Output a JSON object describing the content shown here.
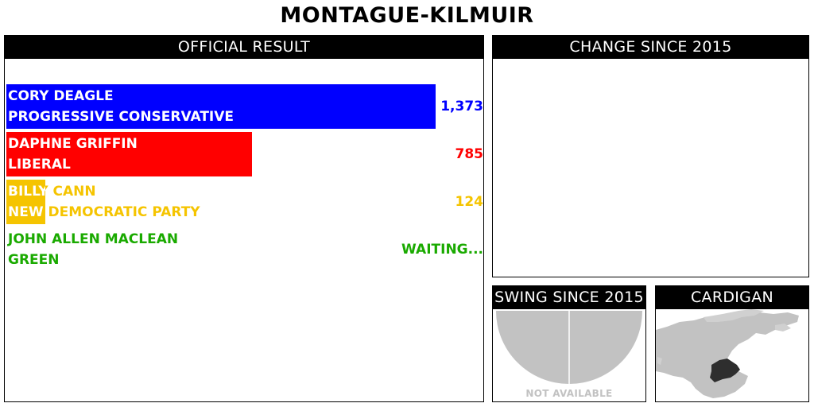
{
  "title": "MONTAGUE-KILMUIR",
  "official": {
    "header": "OFFICIAL RESULT",
    "candidates": [
      {
        "name": "CORY DEAGLE",
        "party": "PROGRESSIVE CONSERVATIVE",
        "votes": "1,373",
        "vote_count": 1373,
        "color": "#0000ff",
        "text_color": "#ffffff"
      },
      {
        "name": "DAPHNE GRIFFIN",
        "party": "LIBERAL",
        "votes": "785",
        "vote_count": 785,
        "color": "#ff0000",
        "text_color": "#ffffff"
      },
      {
        "name": "BILLY CANN",
        "party": "NEW DEMOCRATIC PARTY",
        "votes": "124",
        "vote_count": 124,
        "color": "#f5c400",
        "text_color": "#f5c400"
      },
      {
        "name": "JOHN ALLEN MACLEAN",
        "party": "GREEN",
        "votes": "WAITING...",
        "vote_count": 0,
        "color": "#1aaa00",
        "text_color": "#1aaa00"
      }
    ]
  },
  "change": {
    "header": "CHANGE SINCE 2015"
  },
  "swing": {
    "header": "SWING SINCE 2015",
    "status": "NOT AVAILABLE"
  },
  "region": {
    "header": "CARDIGAN"
  }
}
